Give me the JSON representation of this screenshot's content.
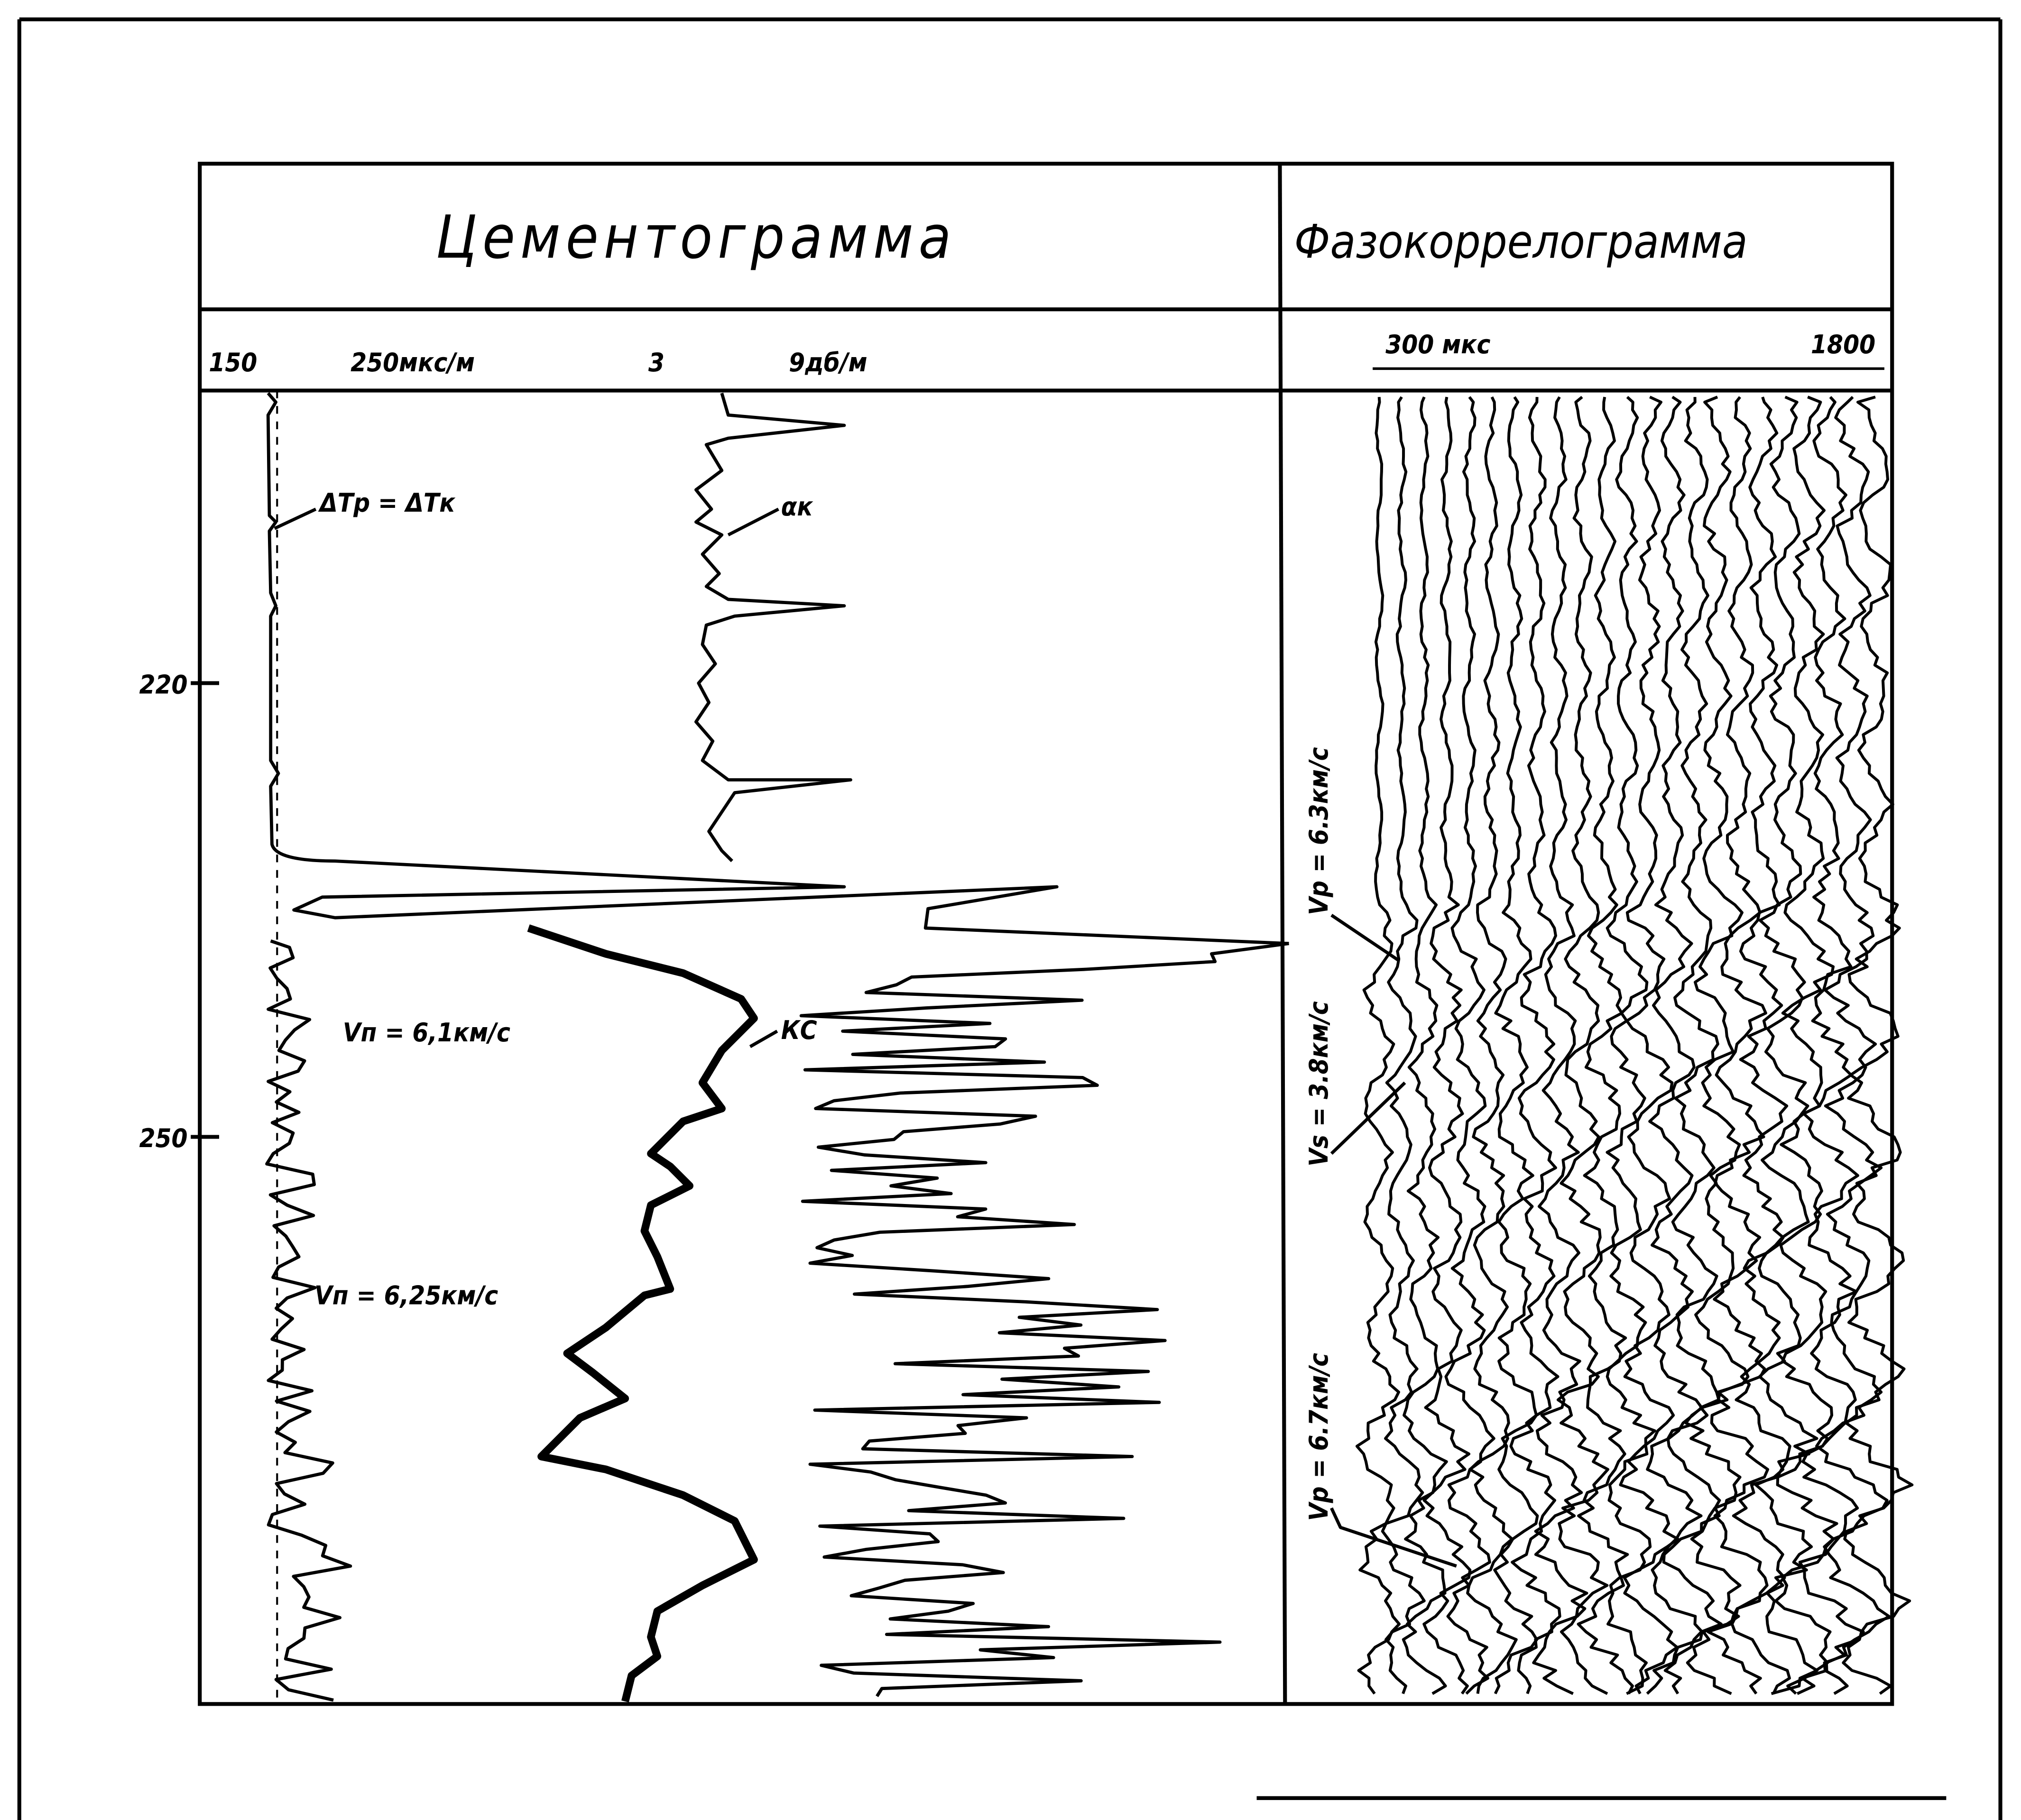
{
  "header": {
    "left_title": "Цементограмма",
    "right_title": "Фазокоррелограмма"
  },
  "scales": {
    "left": [
      "150",
      "250мкс/м",
      "3",
      "9дб/м"
    ],
    "right": [
      "300 мкс",
      "1800"
    ]
  },
  "depth_labels": [
    "220",
    "250"
  ],
  "annotations": {
    "dt": "ΔTр = ΔTк",
    "alpha": "αк",
    "vp1": "Vп = 6,1км/с",
    "ks": "КС",
    "vp2": "Vп = 6,25км/с",
    "vp_63": "Vр = 6.3км/с",
    "vs_38": "Vs = 3.8км/с",
    "vp_67": "Vр = 6.7км/с"
  }
}
